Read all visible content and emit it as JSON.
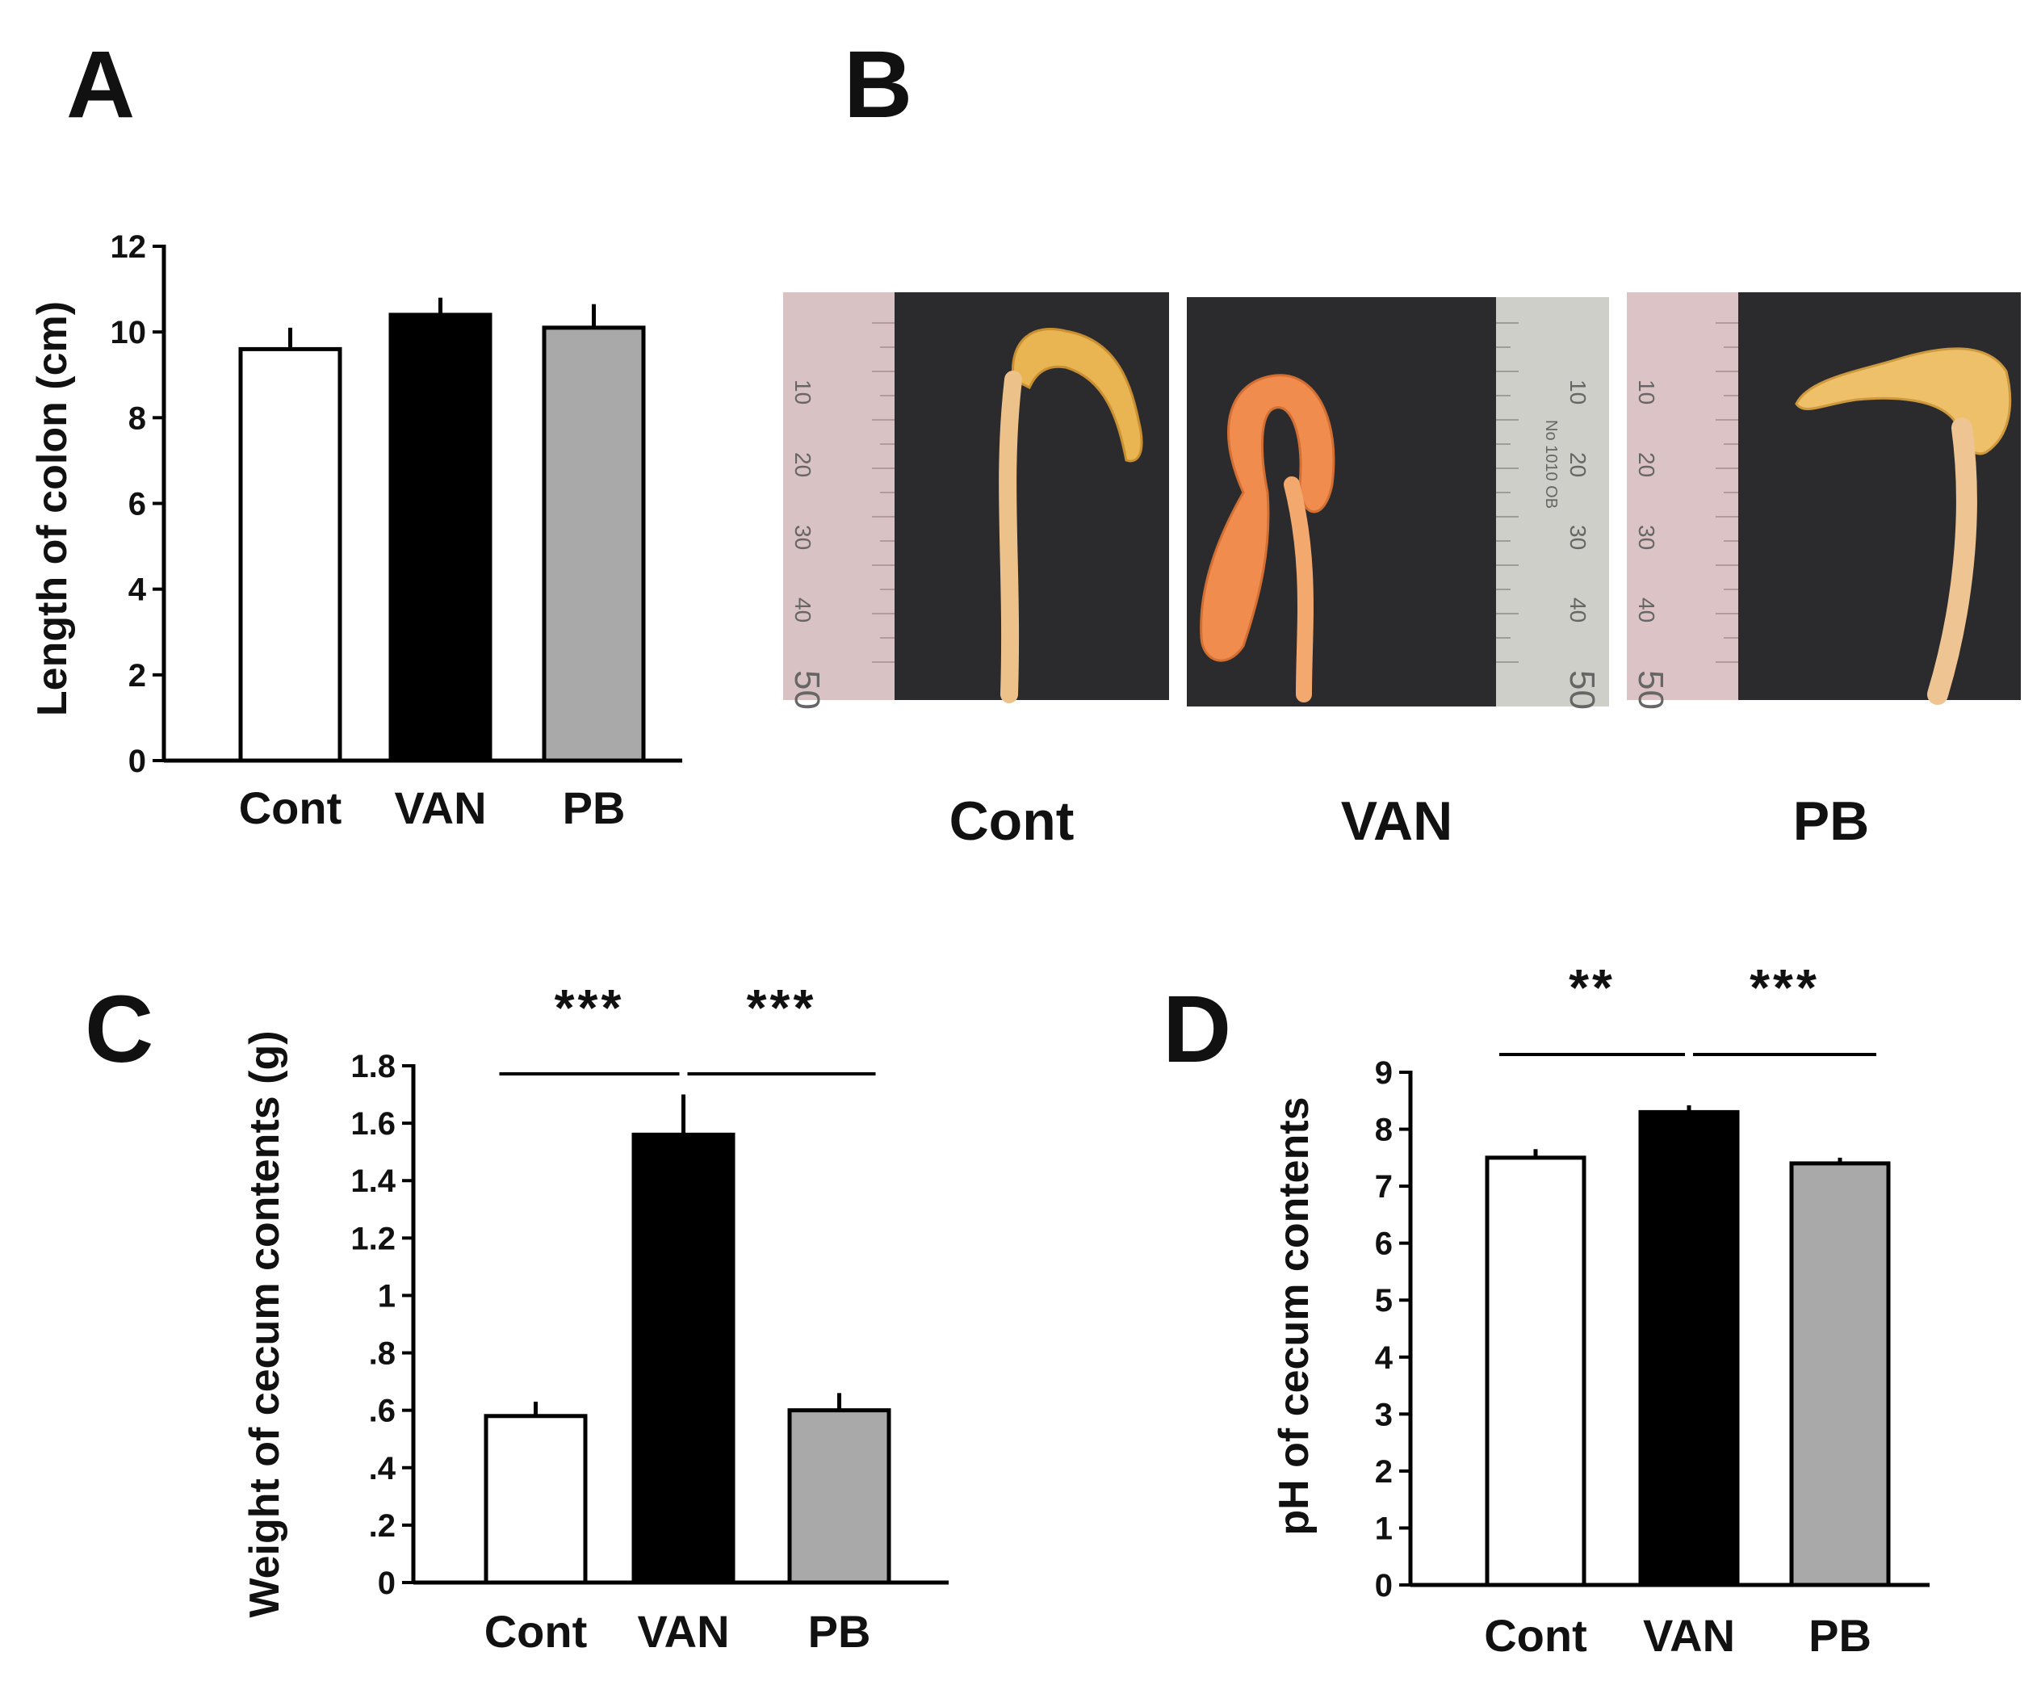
{
  "panels": {
    "a": {
      "letter": "A"
    },
    "b": {
      "letter": "B",
      "photo_labels": [
        "Cont",
        "VAN",
        "PB"
      ]
    },
    "c": {
      "letter": "C"
    },
    "d": {
      "letter": "D"
    }
  },
  "ruler_numbers": {
    "cont": [
      "10",
      "20",
      "30",
      "40",
      "50"
    ],
    "van": [
      "10",
      "20",
      "30",
      "40",
      "50"
    ],
    "pb": [
      "10",
      "20",
      "30",
      "40",
      "50"
    ],
    "van_text": "No 1010 OB"
  },
  "colors": {
    "cont": "#ffffff",
    "van": "#000000",
    "pb": "#a9a9a9",
    "axis": "#000000"
  },
  "chart_data": [
    {
      "id": "A",
      "type": "bar",
      "title": "",
      "ylabel": "Length of colon (cm)",
      "xlabel": "",
      "categories": [
        "Cont",
        "VAN",
        "PB"
      ],
      "values": [
        9.6,
        10.4,
        10.1
      ],
      "errors": [
        0.5,
        0.4,
        0.55
      ],
      "ylim": [
        0,
        12
      ],
      "yticks": [
        0,
        2,
        4,
        6,
        8,
        10,
        12
      ],
      "ytick_labels": [
        "0",
        "2",
        "4",
        "6",
        "8",
        "10",
        "12"
      ],
      "significance": []
    },
    {
      "id": "C",
      "type": "bar",
      "title": "",
      "ylabel": "Weight of cecum contents (g)",
      "xlabel": "",
      "categories": [
        "Cont",
        "VAN",
        "PB"
      ],
      "values": [
        0.58,
        1.56,
        0.6
      ],
      "errors": [
        0.05,
        0.14,
        0.06
      ],
      "ylim": [
        0,
        1.8
      ],
      "yticks": [
        0,
        0.2,
        0.4,
        0.6,
        0.8,
        1.0,
        1.2,
        1.4,
        1.6,
        1.8
      ],
      "ytick_labels": [
        "0",
        ".2",
        ".4",
        ".6",
        ".8",
        "1",
        "1.2",
        "1.4",
        "1.6",
        "1.8"
      ],
      "significance": [
        {
          "from": 0,
          "to": 1,
          "label": "***"
        },
        {
          "from": 1,
          "to": 2,
          "label": "***"
        }
      ]
    },
    {
      "id": "D",
      "type": "bar",
      "title": "",
      "ylabel": "pH of cecum contents",
      "xlabel": "",
      "categories": [
        "Cont",
        "VAN",
        "PB"
      ],
      "values": [
        7.5,
        8.3,
        7.4
      ],
      "errors": [
        0.15,
        0.12,
        0.1
      ],
      "ylim": [
        0,
        9
      ],
      "yticks": [
        0,
        1,
        2,
        3,
        4,
        5,
        6,
        7,
        8,
        9
      ],
      "ytick_labels": [
        "0",
        "1",
        "2",
        "3",
        "4",
        "5",
        "6",
        "7",
        "8",
        "9"
      ],
      "significance": [
        {
          "from": 0,
          "to": 1,
          "label": "**"
        },
        {
          "from": 1,
          "to": 2,
          "label": "***"
        }
      ]
    }
  ]
}
